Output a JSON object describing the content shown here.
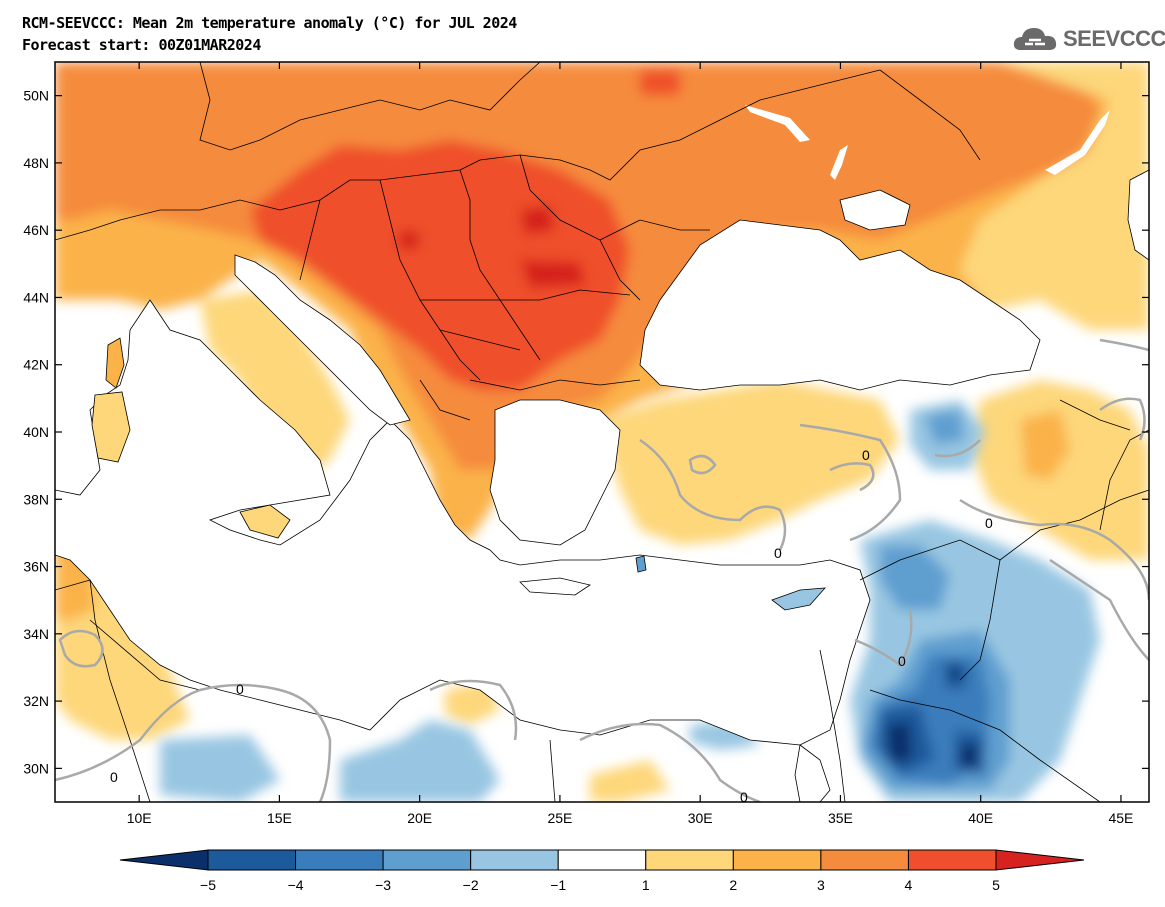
{
  "header": {
    "title_line1": "RCM-SEEVCCC: Mean 2m temperature anomaly (°C) for JUL 2024",
    "title_line2": "Forecast start: 00Z01MAR2024",
    "logo_text": "SEEVCCC"
  },
  "map": {
    "lon_range": [
      7,
      46
    ],
    "lat_range": [
      29,
      51
    ],
    "lat_ticks": [
      {
        "value": 50,
        "label": "50N"
      },
      {
        "value": 48,
        "label": "48N"
      },
      {
        "value": 46,
        "label": "46N"
      },
      {
        "value": 44,
        "label": "44N"
      },
      {
        "value": 42,
        "label": "42N"
      },
      {
        "value": 40,
        "label": "40N"
      },
      {
        "value": 38,
        "label": "38N"
      },
      {
        "value": 36,
        "label": "36N"
      },
      {
        "value": 34,
        "label": "34N"
      },
      {
        "value": 32,
        "label": "32N"
      },
      {
        "value": 30,
        "label": "30N"
      }
    ],
    "lon_ticks": [
      {
        "value": 10,
        "label": "10E"
      },
      {
        "value": 15,
        "label": "15E"
      },
      {
        "value": 20,
        "label": "20E"
      },
      {
        "value": 25,
        "label": "25E"
      },
      {
        "value": 30,
        "label": "30E"
      },
      {
        "value": 35,
        "label": "35E"
      },
      {
        "value": 40,
        "label": "40E"
      },
      {
        "value": 45,
        "label": "45E"
      }
    ],
    "contour_label": "0"
  },
  "colorbar": {
    "bins": [
      {
        "color": "#1d5a9c"
      },
      {
        "color": "#3a7dbc"
      },
      {
        "color": "#5f9fd0"
      },
      {
        "color": "#98c6e2"
      },
      {
        "color": "#ffffff"
      },
      {
        "color": "#fdd77a"
      },
      {
        "color": "#fbb249"
      },
      {
        "color": "#f58b3c"
      },
      {
        "color": "#ef4f2c"
      }
    ],
    "low_end_color": "#0b2f6b",
    "high_end_color": "#d6231f",
    "labels": [
      "−5",
      "−4",
      "−3",
      "−2",
      "−1",
      "1",
      "2",
      "3",
      "4",
      "5"
    ]
  },
  "colors": {
    "warm1": "#fdd77a",
    "warm2": "#fbb249",
    "warm3": "#f58b3c",
    "warm4": "#ef4f2c",
    "warm5": "#d6231f",
    "cool1": "#98c6e2",
    "cool2": "#5f9fd0",
    "cool3": "#3a7dbc",
    "cool4": "#1d5a9c",
    "cool5": "#0b2f6b",
    "sea": "#ffffff"
  }
}
